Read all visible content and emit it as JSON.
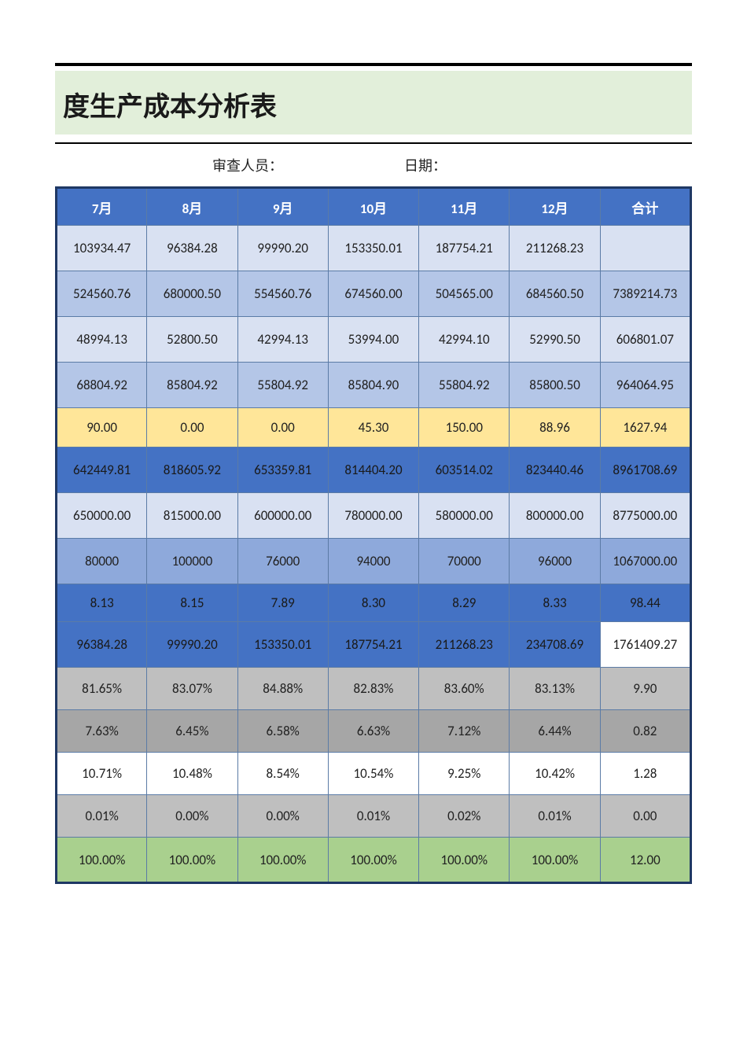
{
  "title": "度生产成本分析表",
  "meta": {
    "reviewer_label": "审查人员：",
    "date_label": "日期："
  },
  "columns": [
    "7月",
    "8月",
    "9月",
    "10月",
    "11月",
    "12月",
    "合计"
  ],
  "rows": [
    {
      "style": "row-light",
      "cells": [
        "103934.47",
        "96384.28",
        "99990.20",
        "153350.01",
        "187754.21",
        "211268.23",
        ""
      ]
    },
    {
      "style": "row-lightbl",
      "cells": [
        "524560.76",
        "680000.50",
        "554560.76",
        "674560.00",
        "504565.00",
        "684560.50",
        "7389214.73"
      ]
    },
    {
      "style": "row-light",
      "cells": [
        "48994.13",
        "52800.50",
        "42994.13",
        "53994.00",
        "42994.10",
        "52990.50",
        "606801.07"
      ]
    },
    {
      "style": "row-lightbl",
      "cells": [
        "68804.92",
        "85804.92",
        "55804.92",
        "85804.90",
        "55804.92",
        "85800.50",
        "964064.95"
      ]
    },
    {
      "style": "row-cream",
      "cells": [
        "90.00",
        "0.00",
        "0.00",
        "45.30",
        "150.00",
        "88.96",
        "1627.94"
      ]
    },
    {
      "style": "row-midblue",
      "cells": [
        "642449.81",
        "818605.92",
        "653359.81",
        "814404.20",
        "603514.02",
        "823440.46",
        "8961708.69"
      ]
    },
    {
      "style": "row-light",
      "cells": [
        "650000.00",
        "815000.00",
        "600000.00",
        "780000.00",
        "580000.00",
        "800000.00",
        "8775000.00"
      ]
    },
    {
      "style": "row-blue",
      "cells": [
        "80000",
        "100000",
        "76000",
        "94000",
        "70000",
        "96000",
        "1067000.00"
      ]
    },
    {
      "style": "row-blue2",
      "cells": [
        "8.13",
        "8.15",
        "7.89",
        "8.30",
        "8.29",
        "8.33",
        "98.44"
      ]
    },
    {
      "style": "row-bluecarry",
      "cells": [
        "96384.28",
        "99990.20",
        "153350.01",
        "187754.21",
        "211268.23",
        "234708.69",
        "1761409.27"
      ],
      "last_white": true
    },
    {
      "style": "row-grey",
      "cells": [
        "81.65%",
        "83.07%",
        "84.88%",
        "82.83%",
        "83.60%",
        "83.13%",
        "9.90"
      ]
    },
    {
      "style": "row-grey2",
      "cells": [
        "7.63%",
        "6.45%",
        "6.58%",
        "6.63%",
        "7.12%",
        "6.44%",
        "0.82"
      ]
    },
    {
      "style": "row-white",
      "cells": [
        "10.71%",
        "10.48%",
        "8.54%",
        "10.54%",
        "9.25%",
        "10.42%",
        "1.28"
      ]
    },
    {
      "style": "row-grey3",
      "cells": [
        "0.01%",
        "0.00%",
        "0.00%",
        "0.01%",
        "0.02%",
        "0.01%",
        "0.00"
      ]
    },
    {
      "style": "row-green",
      "cells": [
        "100.00%",
        "100.00%",
        "100.00%",
        "100.00%",
        "100.00%",
        "100.00%",
        "12.00"
      ]
    }
  ],
  "colors": {
    "header_bg": "#4472c4",
    "header_fg": "#ffffff",
    "border": "#1f3864",
    "cell_border": "#5b7ba6",
    "title_band": "#e2efda"
  }
}
